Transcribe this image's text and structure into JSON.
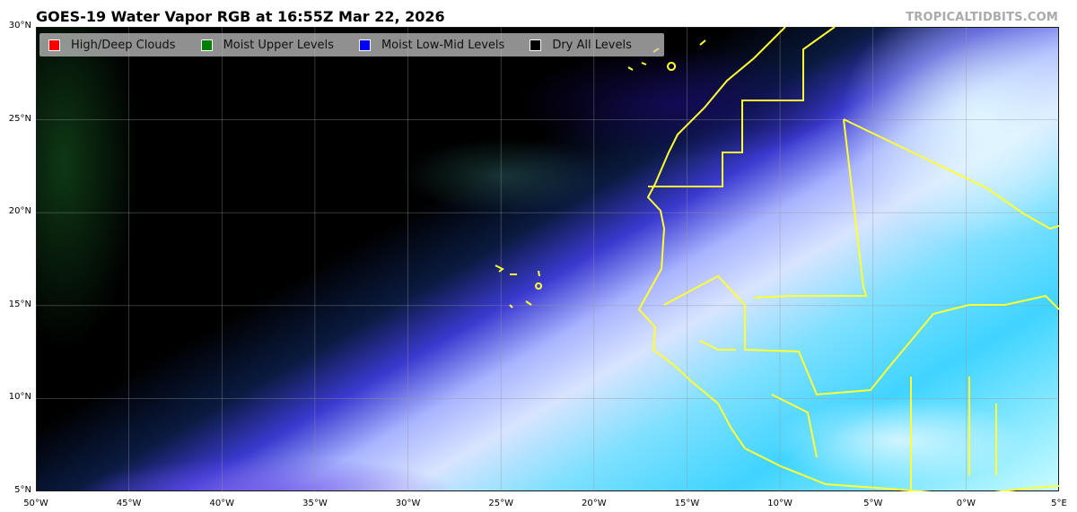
{
  "title": "GOES-19 Water Vapor RGB at 16:55Z Mar 22, 2026",
  "brand": "TROPICALTIDBITS.COM",
  "legend": [
    {
      "label": "High/Deep Clouds",
      "color": "#ff0000"
    },
    {
      "label": "Moist Upper Levels",
      "color": "#008000"
    },
    {
      "label": "Moist Low-Mid Levels",
      "color": "#0000ff"
    },
    {
      "label": "Dry All Levels",
      "color": "#000000"
    }
  ],
  "map": {
    "lon_range": [
      -50,
      5
    ],
    "lat_range": [
      5,
      30
    ],
    "coastline_color": "#ffff33",
    "x_ticks": [
      "50°W",
      "45°W",
      "40°W",
      "35°W",
      "30°W",
      "25°W",
      "20°W",
      "15°W",
      "10°W",
      "5°W",
      "0°W",
      "5°E"
    ],
    "y_ticks": [
      "30°N",
      "25°N",
      "20°N",
      "15°N",
      "10°N",
      "5°N"
    ]
  }
}
